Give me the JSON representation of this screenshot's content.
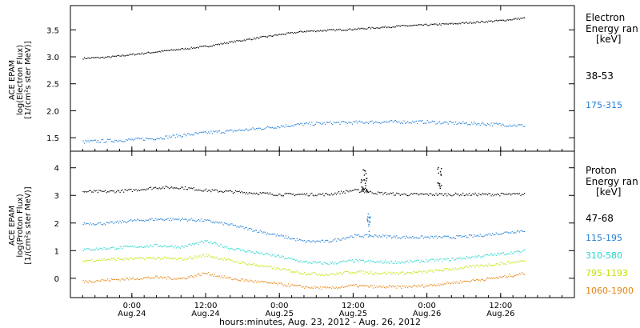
{
  "figure": {
    "x_caption": "hours:minutes, Aug. 23, 2012 - Aug. 26, 2012",
    "x_ticks": [
      {
        "time": "0:00",
        "date": "Aug.24",
        "hour": 24
      },
      {
        "time": "12:00",
        "date": "Aug.24",
        "hour": 36
      },
      {
        "time": "0:00",
        "date": "Aug.25",
        "hour": 48
      },
      {
        "time": "12:00",
        "date": "Aug.25",
        "hour": 60
      },
      {
        "time": "0:00",
        "date": "Aug.26",
        "hour": 72
      },
      {
        "time": "12:00",
        "date": "Aug.26",
        "hour": 84
      }
    ],
    "x_range_hours": [
      14,
      96
    ]
  },
  "panels": {
    "electron": {
      "ylabel_line1": "ACE EPAM",
      "ylabel_line2": "log(Electron Flux)",
      "ylabel_line3": "[1/(cm²s ster MeV)]",
      "legend_title1": "Electron",
      "legend_title2": "Energy ran",
      "legend_unit": "[keV]"
    },
    "proton": {
      "ylabel_line1": "ACE EPAM",
      "ylabel_line2": "log(Proton Flux)",
      "ylabel_line3": "[1/(cm²s ster MeV)]",
      "legend_title1": "Proton",
      "legend_title2": "Energy ran",
      "legend_unit": "[keV]"
    }
  },
  "chart_data": [
    {
      "type": "scatter",
      "ylim": [
        1.25,
        3.95
      ],
      "y_ticks": [
        "1.5",
        "2.0",
        "2.5",
        "3.0",
        "3.5"
      ],
      "y_tick_values": [
        1.5,
        2.0,
        2.5,
        3.0,
        3.5
      ],
      "x": [
        16,
        20,
        24,
        28,
        32,
        36,
        40,
        44,
        48,
        52,
        56,
        60,
        64,
        68,
        72,
        76,
        80,
        84,
        88
      ],
      "series": [
        {
          "name": "38-53",
          "color": "#000000",
          "values": [
            2.98,
            3.0,
            3.05,
            3.1,
            3.15,
            3.2,
            3.28,
            3.35,
            3.42,
            3.48,
            3.5,
            3.52,
            3.55,
            3.58,
            3.6,
            3.62,
            3.65,
            3.68,
            3.73
          ]
        },
        {
          "name": "175-315",
          "color": "#1f7fd6",
          "values": [
            1.43,
            1.45,
            1.47,
            1.5,
            1.55,
            1.6,
            1.63,
            1.67,
            1.72,
            1.76,
            1.78,
            1.79,
            1.8,
            1.8,
            1.8,
            1.78,
            1.77,
            1.75,
            1.73
          ]
        }
      ]
    },
    {
      "type": "scatter",
      "ylim": [
        -0.7,
        4.6
      ],
      "y_ticks": [
        "0",
        "1",
        "2",
        "3",
        "4"
      ],
      "y_tick_values": [
        0,
        1,
        2,
        3,
        4
      ],
      "x": [
        16,
        20,
        24,
        28,
        32,
        36,
        40,
        44,
        48,
        52,
        56,
        60,
        64,
        68,
        72,
        76,
        80,
        84,
        88
      ],
      "series": [
        {
          "name": "47-68",
          "color": "#000000",
          "values": [
            3.15,
            3.15,
            3.2,
            3.3,
            3.3,
            3.2,
            3.15,
            3.1,
            3.05,
            3.05,
            3.05,
            3.2,
            3.1,
            3.05,
            3.05,
            3.05,
            3.05,
            3.05,
            3.05
          ]
        },
        {
          "name": "115-195",
          "color": "#1f7fd6",
          "values": [
            2.0,
            2.0,
            2.1,
            2.15,
            2.15,
            2.1,
            1.95,
            1.75,
            1.55,
            1.35,
            1.35,
            1.55,
            1.55,
            1.5,
            1.5,
            1.5,
            1.55,
            1.65,
            1.75
          ]
        },
        {
          "name": "310-580",
          "color": "#22d6cc",
          "values": [
            1.05,
            1.1,
            1.15,
            1.2,
            1.15,
            1.35,
            1.1,
            0.95,
            0.8,
            0.6,
            0.55,
            0.65,
            0.6,
            0.6,
            0.65,
            0.7,
            0.8,
            0.9,
            1.0
          ]
        },
        {
          "name": "795-1193",
          "color": "#c6e000",
          "values": [
            0.65,
            0.7,
            0.72,
            0.75,
            0.7,
            0.85,
            0.65,
            0.5,
            0.35,
            0.2,
            0.15,
            0.25,
            0.2,
            0.2,
            0.25,
            0.35,
            0.45,
            0.55,
            0.65
          ]
        },
        {
          "name": "1060-1900",
          "color": "#e8820e",
          "values": [
            -0.1,
            -0.05,
            0.0,
            0.05,
            0.0,
            0.2,
            0.0,
            -0.1,
            -0.2,
            -0.3,
            -0.35,
            -0.25,
            -0.3,
            -0.3,
            -0.25,
            -0.15,
            -0.05,
            0.05,
            0.2
          ]
        }
      ],
      "spikes": [
        {
          "hour": 61.5,
          "value": 4.2,
          "series": "47-68"
        },
        {
          "hour": 62,
          "value": 3.9,
          "series": "47-68"
        },
        {
          "hour": 62.5,
          "value": 2.4,
          "series": "115-195"
        },
        {
          "hour": 74,
          "value": 4.05,
          "series": "47-68"
        }
      ]
    }
  ]
}
